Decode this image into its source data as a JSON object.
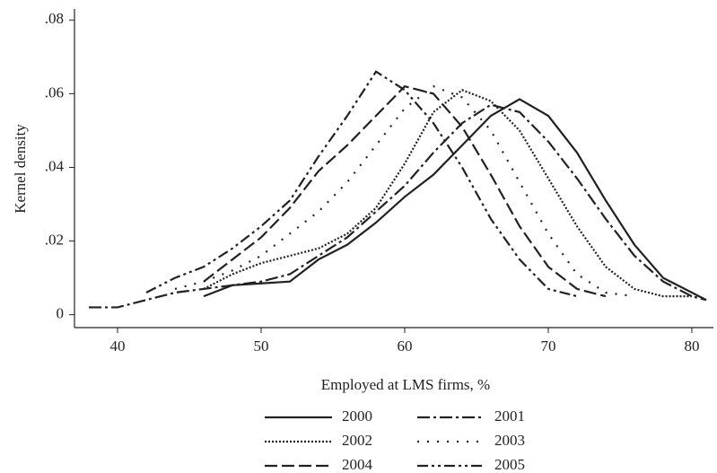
{
  "chart_data": {
    "type": "line",
    "ylabel": "Kernel density",
    "xlabel": "Employed at LMS firms, %",
    "x": [
      38,
      40,
      42,
      44,
      46,
      48,
      50,
      52,
      54,
      56,
      58,
      60,
      62,
      64,
      66,
      68,
      70,
      72,
      74,
      76,
      78,
      80,
      81
    ],
    "xlim": [
      37,
      81.5
    ],
    "xticks": [
      40,
      50,
      60,
      70,
      80
    ],
    "ylim": [
      -0.0035,
      0.083
    ],
    "yticks": [
      0,
      {
        "value": 0.02,
        "label": ".02"
      },
      {
        "value": 0.04,
        "label": ".04"
      },
      {
        "value": 0.06,
        "label": ".06"
      },
      {
        "value": 0.08,
        "label": ".08"
      }
    ],
    "series": [
      {
        "name": "2000",
        "color": "#222222",
        "style": "solid",
        "values": [
          null,
          null,
          null,
          null,
          0.005,
          0.008,
          0.0085,
          0.009,
          0.015,
          0.019,
          0.025,
          0.032,
          0.038,
          0.046,
          0.054,
          0.0585,
          0.054,
          0.044,
          0.031,
          0.019,
          0.01,
          0.006,
          0.004
        ]
      },
      {
        "name": "2001",
        "color": "#222222",
        "style": "dashdot",
        "values": [
          0.002,
          0.002,
          0.004,
          0.006,
          0.007,
          0.008,
          0.009,
          0.011,
          0.016,
          0.021,
          0.028,
          0.035,
          0.044,
          0.052,
          0.057,
          0.055,
          0.047,
          0.037,
          0.026,
          0.016,
          0.009,
          0.005,
          0.004
        ]
      },
      {
        "name": "2002",
        "color": "#222222",
        "style": "dotted",
        "values": [
          null,
          null,
          null,
          null,
          0.007,
          0.011,
          0.014,
          0.016,
          0.018,
          0.022,
          0.029,
          0.041,
          0.055,
          0.061,
          0.058,
          0.05,
          0.037,
          0.024,
          0.013,
          0.007,
          0.005,
          0.005,
          null
        ]
      },
      {
        "name": "2003",
        "color": "#222222",
        "style": "dot",
        "values": [
          null,
          null,
          null,
          0.007,
          0.009,
          0.012,
          0.016,
          0.022,
          0.028,
          0.036,
          0.046,
          0.056,
          0.062,
          0.059,
          0.05,
          0.036,
          0.022,
          0.011,
          0.006,
          0.005,
          null,
          null,
          null
        ]
      },
      {
        "name": "2004",
        "color": "#222222",
        "style": "dash",
        "values": [
          null,
          null,
          null,
          null,
          0.009,
          0.015,
          0.021,
          0.029,
          0.039,
          0.046,
          0.054,
          0.062,
          0.06,
          0.051,
          0.038,
          0.024,
          0.013,
          0.007,
          0.005,
          null,
          null,
          null,
          null
        ]
      },
      {
        "name": "2005",
        "color": "#222222",
        "style": "dashdotdot",
        "values": [
          null,
          null,
          0.006,
          0.01,
          0.013,
          0.018,
          0.024,
          0.031,
          0.043,
          0.054,
          0.066,
          0.061,
          0.052,
          0.04,
          0.026,
          0.015,
          0.007,
          0.005,
          null,
          null,
          null,
          null,
          null
        ]
      }
    ]
  }
}
